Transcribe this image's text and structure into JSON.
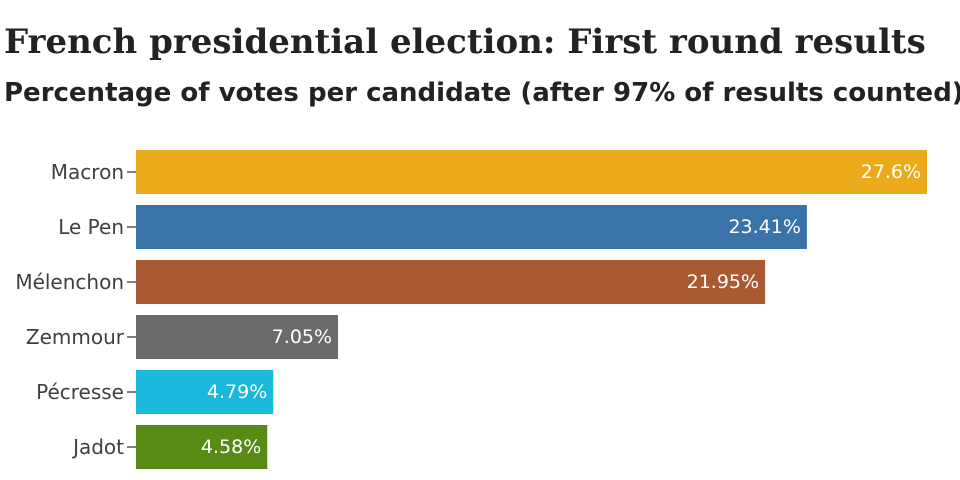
{
  "chart_data": {
    "type": "bar",
    "orientation": "horizontal",
    "title": "French presidential election: First round results",
    "subtitle": "Percentage of votes per candidate (after 97% of results counted)",
    "categories": [
      "Macron",
      "Le Pen",
      "Mélenchon",
      "Zemmour",
      "Pécresse",
      "Jadot"
    ],
    "values": [
      27.6,
      23.41,
      21.95,
      7.05,
      4.79,
      4.58
    ],
    "value_labels": [
      "27.6%",
      "23.41%",
      "21.95%",
      "7.05%",
      "4.79%",
      "4.58%"
    ],
    "colors": [
      "#EBAA1C",
      "#3A73A8",
      "#A95A32",
      "#6B6B6E",
      "#1BB8DC",
      "#588A16"
    ],
    "xlim": [
      0,
      27.6
    ],
    "grid": false,
    "legend": "none"
  }
}
